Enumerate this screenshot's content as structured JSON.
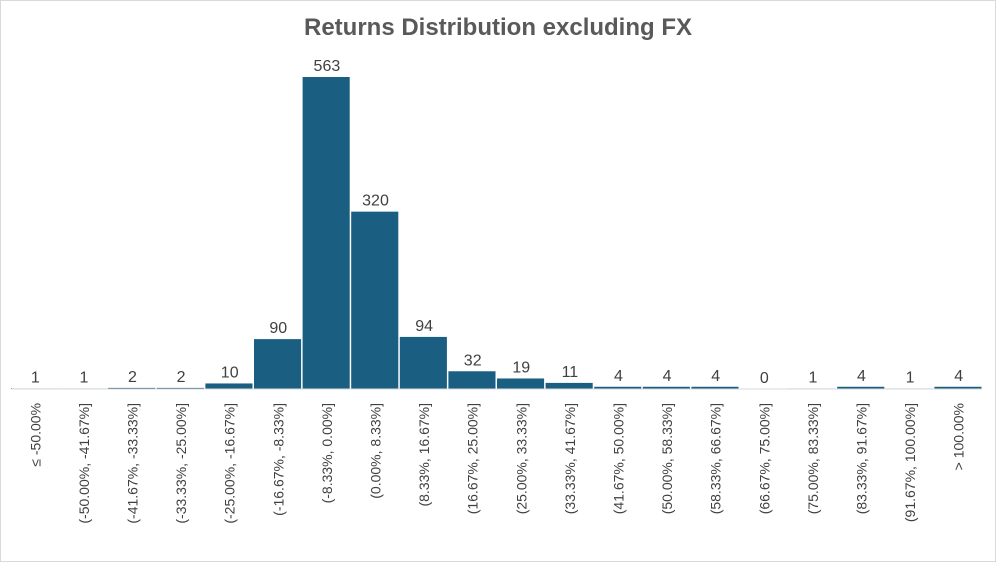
{
  "chart_data": {
    "type": "bar",
    "title": "Returns Distribution  excluding FX",
    "xlabel": "",
    "ylabel": "",
    "ylim": [
      0,
      563
    ],
    "grid": false,
    "legend": "none",
    "bar_color": "#1a5e81",
    "categories": [
      "≤ -50.00%",
      "(-50.00%, -41.67%]",
      "(-41.67%, -33.33%]",
      "(-33.33%, -25.00%]",
      "(-25.00%, -16.67%]",
      "(-16.67%, -8.33%]",
      "(-8.33%, 0.00%]",
      "(0.00%, 8.33%]",
      "(8.33%, 16.67%]",
      "(16.67%, 25.00%]",
      "(25.00%, 33.33%]",
      "(33.33%, 41.67%]",
      "(41.67%, 50.00%]",
      "(50.00%, 58.33%]",
      "(58.33%, 66.67%]",
      "(66.67%, 75.00%]",
      "(75.00%, 83.33%]",
      "(83.33%, 91.67%]",
      "(91.67%, 100.00%]",
      "> 100.00%"
    ],
    "values": [
      1,
      1,
      2,
      2,
      10,
      90,
      563,
      320,
      94,
      32,
      19,
      11,
      4,
      4,
      4,
      0,
      1,
      4,
      1,
      4
    ]
  }
}
